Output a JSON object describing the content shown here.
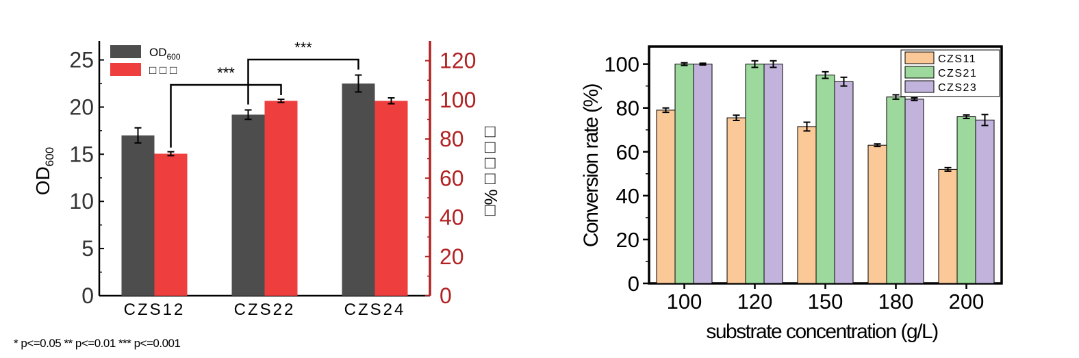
{
  "footnote": "* p<=0.05    ** p<=0.01    *** p<=0.001",
  "chart_data": [
    {
      "type": "bar",
      "categories": [
        "CZS12",
        "CZS22",
        "CZS24"
      ],
      "series": [
        {
          "name": "OD600",
          "axis": "left",
          "color": "#4d4d4d",
          "values": [
            17.0,
            19.2,
            22.5
          ],
          "errors": [
            0.8,
            0.5,
            0.9
          ]
        },
        {
          "name": "□ □ □",
          "axis": "right",
          "color": "#ef3e3e",
          "values": [
            72.5,
            99.5,
            99.5
          ],
          "errors": [
            1.0,
            0.8,
            1.5
          ]
        }
      ],
      "ylabel_left": "OD600",
      "ylabel_right": "□ □ □ □ %□",
      "ylim_left": [
        0,
        27
      ],
      "ylim_right": [
        0,
        130
      ],
      "yticks_left": [
        "0",
        "5",
        "10",
        "15",
        "20",
        "25"
      ],
      "yticks_right": [
        "0",
        "20",
        "40",
        "60",
        "80",
        "100",
        "120"
      ],
      "right_axis_color": "#b22222",
      "legend": "top-left",
      "significance": [
        {
          "from": "CZS12",
          "to": "CZS22",
          "label": "***"
        },
        {
          "from": "CZS22",
          "to": "CZS24",
          "label": "***"
        }
      ]
    },
    {
      "type": "bar",
      "categories": [
        "100",
        "120",
        "150",
        "180",
        "200"
      ],
      "series": [
        {
          "name": "CZS11",
          "color": "#fbc898",
          "values": [
            79,
            75.5,
            71.5,
            63,
            52
          ],
          "errors": [
            1.0,
            1.2,
            2.0,
            0.6,
            0.8
          ]
        },
        {
          "name": "CZS21",
          "color": "#9dd99d",
          "values": [
            100,
            100,
            95,
            85,
            76
          ],
          "errors": [
            0.6,
            1.5,
            1.5,
            1.0,
            0.8
          ]
        },
        {
          "name": "CZS23",
          "color": "#c2b3dc",
          "values": [
            100,
            100,
            92,
            84,
            74.5
          ],
          "errors": [
            0.4,
            1.5,
            2.0,
            0.6,
            2.5
          ]
        }
      ],
      "xlabel": "substrate concentration (g/L)",
      "ylabel": "Conversion rate (%)",
      "ylim": [
        0,
        108
      ],
      "yticks": [
        "0",
        "20",
        "40",
        "60",
        "80",
        "100"
      ],
      "legend": "top-right"
    }
  ]
}
